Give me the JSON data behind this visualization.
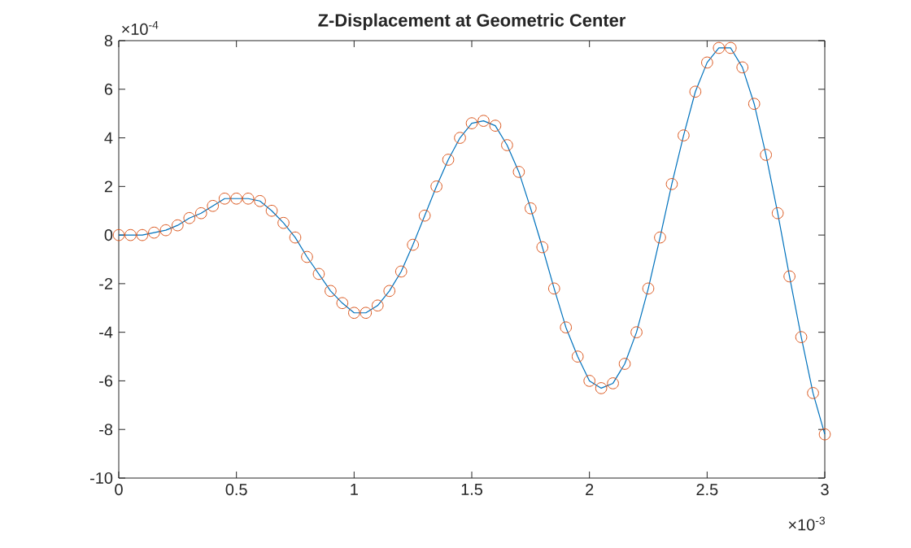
{
  "chart_data": {
    "type": "line",
    "title": "Z-Displacement at Geometric Center",
    "annotations": [
      "×10$^{-4}$",
      "×10$^{-3}$"
    ],
    "x": [
      0,
      0.05,
      0.1,
      0.15,
      0.2,
      0.25,
      0.3,
      0.35,
      0.4,
      0.45,
      0.5,
      0.55,
      0.6,
      0.65,
      0.7,
      0.75,
      0.8,
      0.85,
      0.9,
      0.95,
      1,
      1.05,
      1.1,
      1.15,
      1.2,
      1.25,
      1.3,
      1.35,
      1.4,
      1.45,
      1.5,
      1.55,
      1.6,
      1.65,
      1.7,
      1.75,
      1.8,
      1.85,
      1.9,
      1.95,
      2,
      2.05,
      2.1,
      2.15,
      2.2,
      2.25,
      2.3,
      2.35,
      2.4,
      2.45,
      2.5,
      2.55,
      2.6,
      2.65,
      2.7,
      2.75,
      2.8,
      2.85,
      2.9,
      2.95,
      3
    ],
    "series": [
      {
        "color": "#0072bd",
        "marker": "none",
        "values": [
          0,
          0,
          0,
          0.1,
          0.2,
          0.4,
          0.7,
          0.9,
          1.2,
          1.5,
          1.5,
          1.5,
          1.4,
          1,
          0.5,
          -0.1,
          -0.9,
          -1.6,
          -2.3,
          -2.8,
          -3.2,
          -3.2,
          -2.9,
          -2.3,
          -1.5,
          -0.4,
          0.8,
          2,
          3.1,
          4,
          4.6,
          4.7,
          4.5,
          3.7,
          2.6,
          1.1,
          -0.5,
          -2.2,
          -3.8,
          -5,
          -6,
          -6.3,
          -6.1,
          -5.3,
          -4,
          -2.2,
          -0.1,
          2.1,
          4.1,
          5.9,
          7.1,
          7.7,
          7.7,
          6.9,
          5.4,
          3.3,
          0.9,
          -1.7,
          -4.2,
          -6.5,
          -8.2
        ]
      },
      {
        "type": "scatter",
        "color": "#d95319",
        "marker": "circle",
        "values": [
          0,
          0,
          0,
          0.1,
          0.2,
          0.4,
          0.7,
          0.9,
          1.2,
          1.5,
          1.5,
          1.5,
          1.4,
          1,
          0.5,
          -0.1,
          -0.9,
          -1.6,
          -2.3,
          -2.8,
          -3.2,
          -3.2,
          -2.9,
          -2.3,
          -1.5,
          -0.4,
          0.8,
          2,
          3.1,
          4,
          4.6,
          4.7,
          4.5,
          3.7,
          2.6,
          1.1,
          -0.5,
          -2.2,
          -3.8,
          -5,
          -6,
          -6.3,
          -6.1,
          -5.3,
          -4,
          -2.2,
          -0.1,
          2.1,
          4.1,
          5.9,
          7.1,
          7.7,
          7.7,
          6.9,
          5.4,
          3.3,
          0.9,
          -1.7,
          -4.2,
          -6.5,
          -8.2
        ]
      }
    ],
    "xlim": [
      0,
      3
    ],
    "xticks": [
      0,
      0.5,
      1,
      1.5,
      2,
      2.5,
      3
    ],
    "ylim": [
      -10,
      8
    ],
    "yticks": [
      -10,
      -8,
      -6,
      -4,
      -2,
      0,
      2,
      4,
      6,
      8
    ]
  }
}
